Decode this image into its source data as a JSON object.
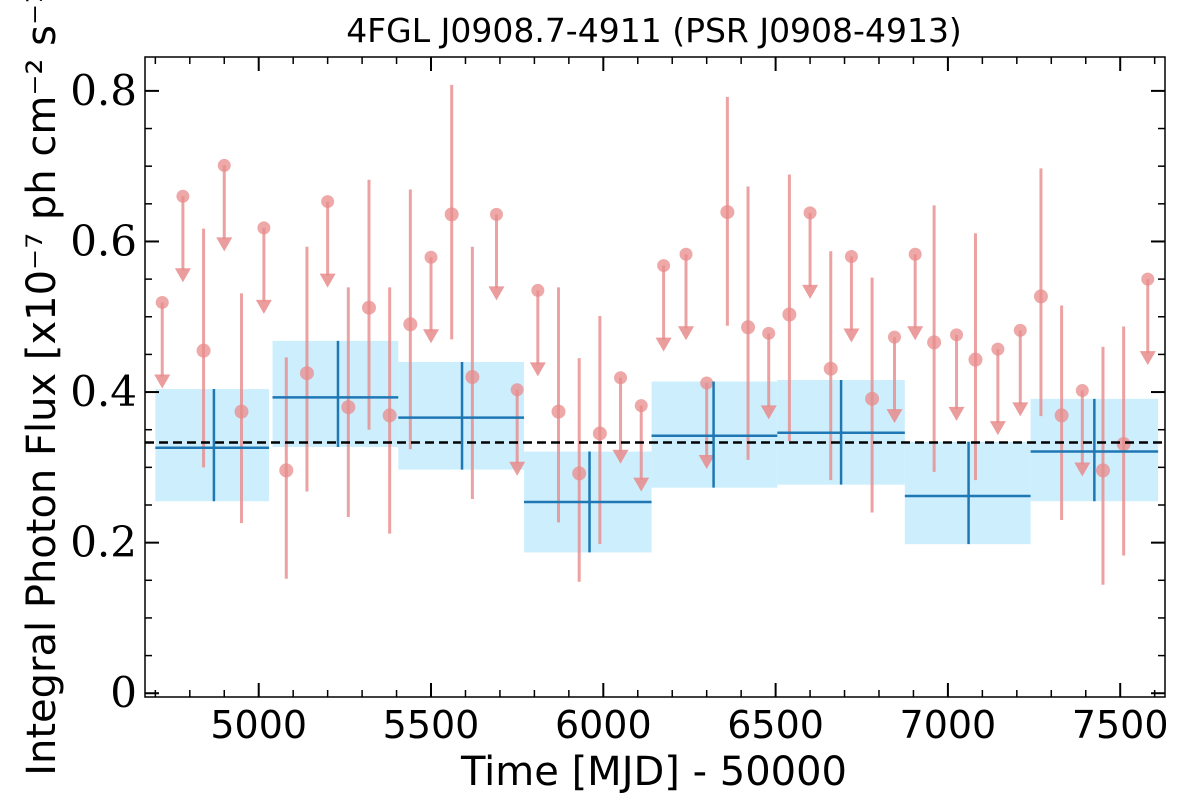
{
  "chart_data": {
    "type": "scatter",
    "title": "4FGL J0908.7-4911 (PSR J0908-4913)",
    "xlabel": "Time [MJD] - 50000",
    "ylabel": "Integral Photon Flux [x10⁻⁷ ph cm⁻² s⁻¹]",
    "xlim": [
      4670,
      7630
    ],
    "ylim": [
      -0.005,
      0.845
    ],
    "xticks": [
      5000,
      5500,
      6000,
      6500,
      7000,
      7500
    ],
    "xtick_labels": [
      "5000",
      "5500",
      "6000",
      "6500",
      "7000",
      "7500"
    ],
    "yticks": [
      0,
      0.2,
      0.4,
      0.6,
      0.8
    ],
    "ytick_labels": [
      "0",
      "0.2",
      "0.4",
      "0.6",
      "0.8"
    ],
    "grid": false,
    "mean_flux": 0.333,
    "colors": {
      "detection": "#e88b8b",
      "bin_box": "#cdeffd",
      "bin_line": "#1f77b4",
      "mean_line": "#000000"
    },
    "short_detections": [
      {
        "x": 4840,
        "y": 0.455,
        "lo": 0.3,
        "hi": 0.617
      },
      {
        "x": 4950,
        "y": 0.374,
        "lo": 0.226,
        "hi": 0.531
      },
      {
        "x": 5080,
        "y": 0.296,
        "lo": 0.152,
        "hi": 0.446
      },
      {
        "x": 5140,
        "y": 0.425,
        "lo": 0.268,
        "hi": 0.593
      },
      {
        "x": 5260,
        "y": 0.38,
        "lo": 0.234,
        "hi": 0.539
      },
      {
        "x": 5320,
        "y": 0.512,
        "lo": 0.35,
        "hi": 0.682
      },
      {
        "x": 5380,
        "y": 0.369,
        "lo": 0.212,
        "hi": 0.539
      },
      {
        "x": 5440,
        "y": 0.49,
        "lo": 0.324,
        "hi": 0.669
      },
      {
        "x": 5560,
        "y": 0.636,
        "lo": 0.47,
        "hi": 0.808
      },
      {
        "x": 5620,
        "y": 0.42,
        "lo": 0.258,
        "hi": 0.593
      },
      {
        "x": 5870,
        "y": 0.374,
        "lo": 0.227,
        "hi": 0.539
      },
      {
        "x": 5930,
        "y": 0.292,
        "lo": 0.148,
        "hi": 0.445
      },
      {
        "x": 5990,
        "y": 0.345,
        "lo": 0.198,
        "hi": 0.501
      },
      {
        "x": 6360,
        "y": 0.639,
        "lo": 0.488,
        "hi": 0.792
      },
      {
        "x": 6420,
        "y": 0.486,
        "lo": 0.31,
        "hi": 0.673
      },
      {
        "x": 6540,
        "y": 0.503,
        "lo": 0.335,
        "hi": 0.689
      },
      {
        "x": 6660,
        "y": 0.431,
        "lo": 0.283,
        "hi": 0.587
      },
      {
        "x": 6780,
        "y": 0.391,
        "lo": 0.24,
        "hi": 0.552
      },
      {
        "x": 6960,
        "y": 0.466,
        "lo": 0.294,
        "hi": 0.648
      },
      {
        "x": 7080,
        "y": 0.443,
        "lo": 0.283,
        "hi": 0.611
      },
      {
        "x": 7270,
        "y": 0.527,
        "lo": 0.368,
        "hi": 0.697
      },
      {
        "x": 7330,
        "y": 0.369,
        "lo": 0.23,
        "hi": 0.515
      },
      {
        "x": 7450,
        "y": 0.296,
        "lo": 0.144,
        "hi": 0.46
      },
      {
        "x": 7510,
        "y": 0.331,
        "lo": 0.183,
        "hi": 0.487
      }
    ],
    "short_upper_limits": [
      {
        "x": 4720,
        "y": 0.519
      },
      {
        "x": 4780,
        "y": 0.66
      },
      {
        "x": 4900,
        "y": 0.701
      },
      {
        "x": 5015,
        "y": 0.618
      },
      {
        "x": 5200,
        "y": 0.653
      },
      {
        "x": 5500,
        "y": 0.579
      },
      {
        "x": 5690,
        "y": 0.636
      },
      {
        "x": 5750,
        "y": 0.403
      },
      {
        "x": 5810,
        "y": 0.535
      },
      {
        "x": 6050,
        "y": 0.419
      },
      {
        "x": 6110,
        "y": 0.382
      },
      {
        "x": 6175,
        "y": 0.568
      },
      {
        "x": 6240,
        "y": 0.583
      },
      {
        "x": 6300,
        "y": 0.412
      },
      {
        "x": 6480,
        "y": 0.478
      },
      {
        "x": 6600,
        "y": 0.638
      },
      {
        "x": 6720,
        "y": 0.58
      },
      {
        "x": 6845,
        "y": 0.473
      },
      {
        "x": 6905,
        "y": 0.583
      },
      {
        "x": 7025,
        "y": 0.476
      },
      {
        "x": 7145,
        "y": 0.457
      },
      {
        "x": 7210,
        "y": 0.482
      },
      {
        "x": 7390,
        "y": 0.402
      },
      {
        "x": 7580,
        "y": 0.55
      }
    ],
    "long_bins": [
      {
        "x0": 4700,
        "x1": 5030,
        "xc": 4870,
        "y": 0.326,
        "lo": 0.255,
        "hi": 0.404
      },
      {
        "x0": 5040,
        "x1": 5405,
        "xc": 5230,
        "y": 0.393,
        "lo": 0.327,
        "hi": 0.468
      },
      {
        "x0": 5405,
        "x1": 5770,
        "xc": 5590,
        "y": 0.366,
        "lo": 0.297,
        "hi": 0.44
      },
      {
        "x0": 5770,
        "x1": 6140,
        "xc": 5960,
        "y": 0.254,
        "lo": 0.187,
        "hi": 0.321
      },
      {
        "x0": 6140,
        "x1": 6505,
        "xc": 6320,
        "y": 0.342,
        "lo": 0.273,
        "hi": 0.414
      },
      {
        "x0": 6505,
        "x1": 6875,
        "xc": 6690,
        "y": 0.346,
        "lo": 0.277,
        "hi": 0.416
      },
      {
        "x0": 6875,
        "x1": 7240,
        "xc": 7060,
        "y": 0.262,
        "lo": 0.198,
        "hi": 0.334
      },
      {
        "x0": 7240,
        "x1": 7610,
        "xc": 7425,
        "y": 0.321,
        "lo": 0.255,
        "hi": 0.391
      }
    ]
  }
}
